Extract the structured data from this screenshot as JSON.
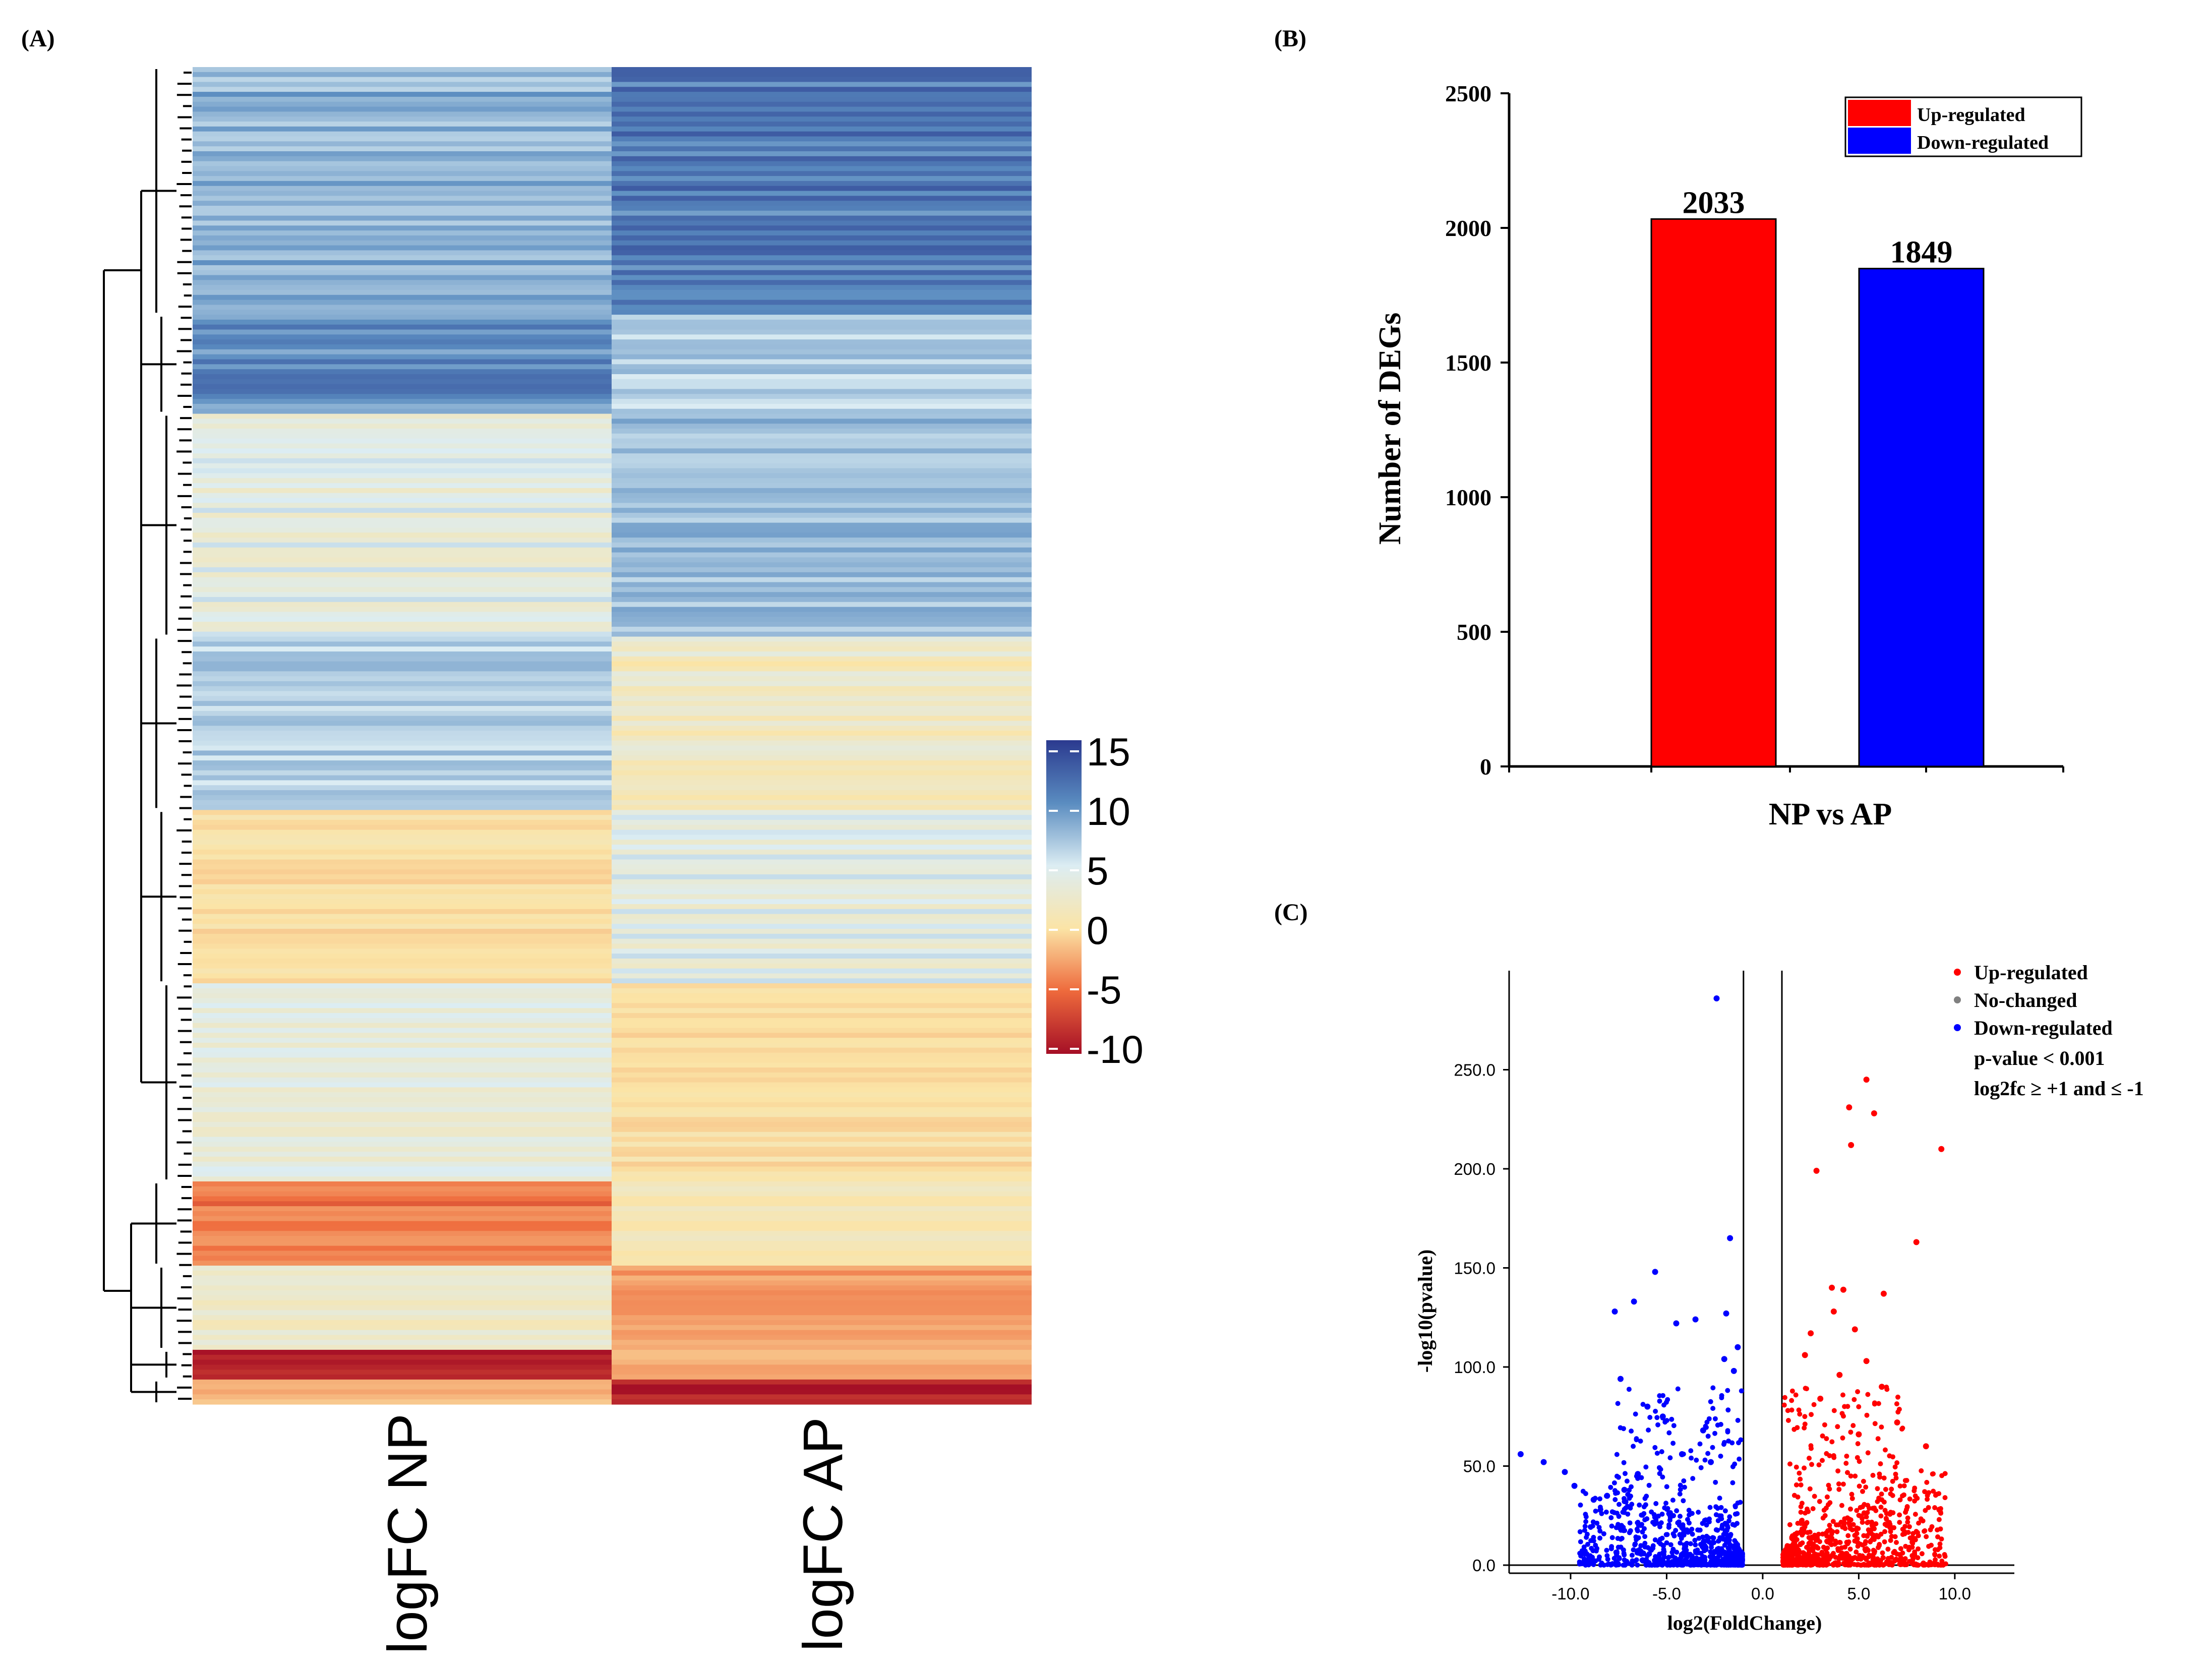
{
  "panel_labels": {
    "a": "(A)",
    "b": "(B)",
    "c": "(C)"
  },
  "chart_data": [
    {
      "type": "heatmap",
      "panel": "(A)",
      "columns": [
        "logFC NP",
        "logFC AP"
      ],
      "colorbar": {
        "ticks": [
          "15",
          "10",
          "5",
          "0",
          "-5",
          "-10"
        ],
        "min": -10,
        "max": 15
      },
      "colors": {
        "high": "#2b3a8f",
        "mid": "#fbe4a6",
        "low": "#a50f26"
      },
      "row_blocks": [
        {
          "rows": 50,
          "np": [
            6,
            10
          ],
          "ap": [
            9,
            13
          ]
        },
        {
          "rows": 20,
          "np": [
            8,
            12
          ],
          "ap": [
            5,
            8
          ]
        },
        {
          "rows": 45,
          "np": [
            2,
            6
          ],
          "ap": [
            6,
            9
          ]
        },
        {
          "rows": 35,
          "np": [
            5,
            8
          ],
          "ap": [
            0,
            4
          ]
        },
        {
          "rows": 35,
          "np": [
            -1,
            1
          ],
          "ap": [
            2,
            6
          ]
        },
        {
          "rows": 40,
          "np": [
            2,
            5
          ],
          "ap": [
            -1,
            1
          ]
        },
        {
          "rows": 17,
          "np": [
            -6,
            -3
          ],
          "ap": [
            0,
            2
          ]
        },
        {
          "rows": 17,
          "np": [
            1,
            4
          ],
          "ap": [
            -4,
            -2
          ]
        },
        {
          "rows": 6,
          "np": [
            -10,
            -8
          ],
          "ap": [
            -3,
            -1
          ]
        },
        {
          "rows": 5,
          "np": [
            -3,
            -1
          ],
          "ap": [
            -10,
            -8
          ]
        }
      ]
    },
    {
      "type": "bar",
      "panel": "(B)",
      "categories": [
        "Up-regulated",
        "Down-regulated"
      ],
      "values": [
        2033,
        1849
      ],
      "value_labels": [
        "2033",
        "1849"
      ],
      "colors": [
        "#ff0000",
        "#0000ff"
      ],
      "xlabel": "NP vs AP",
      "ylabel": "Number of DEGs",
      "ylim": [
        0,
        2500
      ],
      "yticks": [
        "0",
        "500",
        "1000",
        "1500",
        "2000",
        "2500"
      ],
      "legend": [
        "Up-regulated",
        "Down-regulated"
      ],
      "legend_position": "top-right"
    },
    {
      "type": "scatter",
      "panel": "(C)",
      "xlabel": "log2(FoldChange)",
      "ylabel": "-log10(pvalue)",
      "xlim": [
        -13.2,
        13.1
      ],
      "ylim": [
        0,
        300
      ],
      "xticks": [
        "-10.0",
        "-5.0",
        "0.0",
        "5.0",
        "10.0"
      ],
      "yticks": [
        "0.0",
        "50.0",
        "100.0",
        "150.0",
        "200.0",
        "250.0"
      ],
      "threshold_lines_x": [
        -1,
        1
      ],
      "colors": {
        "up": "#ff0000",
        "none": "#808080",
        "down": "#0000ff"
      },
      "legend": [
        "Up-regulated",
        "No-changed",
        "Down-regulated"
      ],
      "annotations": [
        "p-value < 0.001",
        "log2fc ≥ +1 and ≤ -1"
      ],
      "down_points": [
        [
          -12.6,
          56
        ],
        [
          -11.4,
          52
        ],
        [
          -10.3,
          47
        ],
        [
          -9.8,
          40
        ],
        [
          -8.1,
          35
        ],
        [
          -7.4,
          94
        ],
        [
          -6.7,
          133
        ],
        [
          -7.7,
          128
        ],
        [
          -5.6,
          148
        ],
        [
          -4.5,
          122
        ],
        [
          -3.5,
          124
        ],
        [
          -2.0,
          104
        ],
        [
          -1.9,
          127
        ],
        [
          -2.4,
          286
        ],
        [
          -1.7,
          165
        ],
        [
          -1.5,
          98
        ],
        [
          -1.3,
          110
        ],
        [
          -6.0,
          80
        ],
        [
          -5.2,
          75
        ],
        [
          -4.2,
          56
        ],
        [
          -3.1,
          68
        ],
        [
          -2.7,
          52
        ],
        [
          -8.8,
          33
        ],
        [
          -7.2,
          38
        ],
        [
          -6.5,
          46
        ]
      ],
      "up_points": [
        [
          5.4,
          245
        ],
        [
          4.5,
          231
        ],
        [
          5.8,
          228
        ],
        [
          9.3,
          210
        ],
        [
          4.6,
          212
        ],
        [
          2.8,
          199
        ],
        [
          8.0,
          163
        ],
        [
          3.6,
          140
        ],
        [
          6.3,
          137
        ],
        [
          4.2,
          139
        ],
        [
          3.7,
          128
        ],
        [
          4.8,
          119
        ],
        [
          5.4,
          103
        ],
        [
          2.5,
          117
        ],
        [
          2.2,
          106
        ],
        [
          4.0,
          96
        ],
        [
          6.2,
          90
        ],
        [
          7.0,
          72
        ],
        [
          8.5,
          60
        ],
        [
          9.2,
          28
        ],
        [
          3.0,
          84
        ],
        [
          5.0,
          66
        ]
      ]
    }
  ]
}
